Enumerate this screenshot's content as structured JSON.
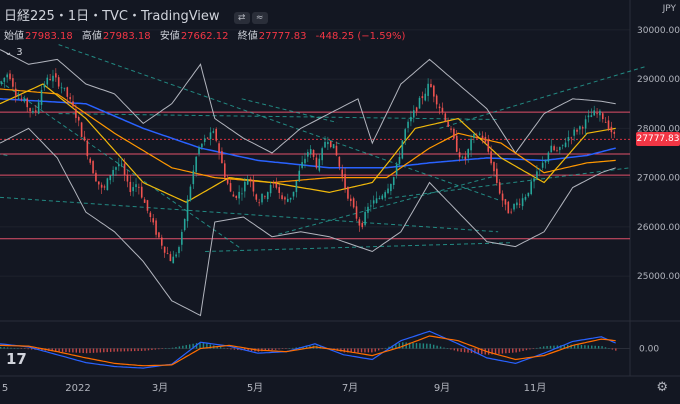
{
  "header": {
    "title": "日経225・1日・TVC・TradingView",
    "toggles": [
      "⇄",
      "≈"
    ],
    "ohlc": [
      {
        "label": "始値",
        "value": "27983.18"
      },
      {
        "label": "高値",
        "value": "27983.18"
      },
      {
        "label": "安値",
        "value": "27662.12"
      },
      {
        "label": "終値",
        "value": "27777.83"
      },
      {
        "label": "",
        "value": "-448.25 (−1.59%)"
      }
    ],
    "indicator_count": "3"
  },
  "currency": "JPY",
  "logo": "17",
  "settings_icon": "gear-icon",
  "chart_data": {
    "type": "candlestick",
    "y_axis": {
      "ylim": [
        24150,
        30200
      ],
      "ticks": [
        "30000.00",
        "29000.00",
        "28000.00",
        "27000.00",
        "26000.00",
        "25000.00"
      ],
      "tick_values": [
        30000,
        29000,
        28000,
        27000,
        26000,
        25000
      ]
    },
    "x_axis": {
      "labels": [
        "5",
        "2022",
        "3月",
        "5月",
        "7月",
        "9月",
        "11月"
      ]
    },
    "last_price": "27777.83",
    "last_value": 27777.83,
    "horizontal_levels": [
      28330,
      27480,
      27050,
      25760
    ],
    "trend_lines": [
      [
        [
          28250,
          28600
        ],
        [
          28380,
          28120
        ]
      ],
      [
        [
          28000,
          28300
        ],
        [
          28600,
          28180
        ]
      ],
      [
        [
          27920,
          28950
        ],
        [
          28250,
          25550
        ]
      ],
      [
        [
          27930,
          27450
        ],
        [
          27600,
          28250
        ]
      ],
      [
        [
          27920,
          26600
        ],
        [
          28600,
          25900
        ]
      ],
      [
        [
          28000,
          29700
        ],
        [
          28600,
          26550
        ]
      ],
      [
        [
          28300,
          25850
        ],
        [
          28600,
          27050
        ]
      ],
      [
        [
          28450,
          26580
        ],
        [
          28780,
          27200
        ]
      ],
      [
        [
          28520,
          28000
        ],
        [
          28800,
          29250
        ]
      ],
      [
        [
          28200,
          25500
        ],
        [
          28620,
          25680
        ]
      ]
    ],
    "price_path": [
      [
        0,
        28900
      ],
      [
        6,
        29150
      ],
      [
        12,
        28650
      ],
      [
        18,
        28500
      ],
      [
        24,
        28250
      ],
      [
        30,
        28900
      ],
      [
        36,
        29050
      ],
      [
        42,
        28900
      ],
      [
        48,
        28600
      ],
      [
        54,
        28200
      ],
      [
        60,
        27600
      ],
      [
        66,
        27050
      ],
      [
        72,
        26700
      ],
      [
        78,
        27150
      ],
      [
        84,
        27300
      ],
      [
        90,
        26750
      ],
      [
        96,
        26900
      ],
      [
        102,
        26400
      ],
      [
        108,
        25950
      ],
      [
        114,
        25600
      ],
      [
        120,
        25300
      ],
      [
        126,
        25650
      ],
      [
        132,
        26700
      ],
      [
        138,
        27550
      ],
      [
        144,
        27800
      ],
      [
        150,
        27900
      ],
      [
        156,
        27150
      ],
      [
        162,
        26600
      ],
      [
        168,
        26700
      ],
      [
        174,
        27050
      ],
      [
        180,
        26500
      ],
      [
        186,
        26700
      ],
      [
        192,
        26900
      ],
      [
        198,
        26500
      ],
      [
        204,
        26650
      ],
      [
        210,
        27200
      ],
      [
        216,
        27600
      ],
      [
        222,
        27200
      ],
      [
        228,
        27850
      ],
      [
        234,
        27550
      ],
      [
        240,
        26900
      ],
      [
        246,
        26400
      ],
      [
        252,
        26000
      ],
      [
        258,
        26450
      ],
      [
        264,
        26550
      ],
      [
        270,
        26800
      ],
      [
        276,
        27050
      ],
      [
        282,
        27900
      ],
      [
        288,
        28250
      ],
      [
        294,
        28600
      ],
      [
        300,
        28900
      ],
      [
        306,
        28500
      ],
      [
        312,
        28150
      ],
      [
        318,
        27650
      ],
      [
        324,
        27300
      ],
      [
        330,
        27800
      ],
      [
        336,
        27900
      ],
      [
        342,
        27450
      ],
      [
        348,
        26800
      ],
      [
        354,
        26300
      ],
      [
        360,
        26450
      ],
      [
        366,
        26600
      ],
      [
        372,
        26900
      ],
      [
        378,
        27200
      ],
      [
        384,
        27600
      ],
      [
        390,
        27500
      ],
      [
        396,
        27800
      ],
      [
        402,
        27950
      ],
      [
        408,
        28100
      ],
      [
        414,
        28300
      ],
      [
        420,
        28280
      ],
      [
        426,
        28000
      ],
      [
        430,
        27778
      ]
    ],
    "ma_orange": [
      [
        0,
        28800
      ],
      [
        40,
        28700
      ],
      [
        80,
        27900
      ],
      [
        120,
        27200
      ],
      [
        150,
        27000
      ],
      [
        190,
        26900
      ],
      [
        230,
        27000
      ],
      [
        270,
        27000
      ],
      [
        300,
        27600
      ],
      [
        320,
        27900
      ],
      [
        350,
        27700
      ],
      [
        380,
        27100
      ],
      [
        410,
        27300
      ],
      [
        430,
        27350
      ]
    ],
    "ma_blue": [
      [
        0,
        28600
      ],
      [
        60,
        28500
      ],
      [
        100,
        28000
      ],
      [
        140,
        27600
      ],
      [
        180,
        27350
      ],
      [
        230,
        27200
      ],
      [
        270,
        27200
      ],
      [
        300,
        27300
      ],
      [
        340,
        27400
      ],
      [
        380,
        27350
      ],
      [
        410,
        27450
      ],
      [
        430,
        27600
      ]
    ],
    "ma_gold": [
      [
        0,
        28500
      ],
      [
        30,
        28900
      ],
      [
        60,
        28200
      ],
      [
        100,
        26900
      ],
      [
        130,
        26500
      ],
      [
        160,
        27000
      ],
      [
        190,
        26900
      ],
      [
        230,
        26700
      ],
      [
        260,
        26900
      ],
      [
        290,
        28000
      ],
      [
        320,
        28200
      ],
      [
        350,
        27400
      ],
      [
        380,
        26900
      ],
      [
        410,
        27900
      ],
      [
        430,
        28000
      ]
    ],
    "bollinger_upper": [
      [
        0,
        29600
      ],
      [
        20,
        29300
      ],
      [
        40,
        29400
      ],
      [
        60,
        28900
      ],
      [
        80,
        28700
      ],
      [
        100,
        28100
      ],
      [
        120,
        28500
      ],
      [
        140,
        29300
      ],
      [
        150,
        28200
      ],
      [
        170,
        27800
      ],
      [
        190,
        27500
      ],
      [
        210,
        28000
      ],
      [
        230,
        28300
      ],
      [
        250,
        28600
      ],
      [
        260,
        27700
      ],
      [
        280,
        28900
      ],
      [
        300,
        29400
      ],
      [
        320,
        28900
      ],
      [
        340,
        28400
      ],
      [
        360,
        27500
      ],
      [
        380,
        28300
      ],
      [
        400,
        28600
      ],
      [
        420,
        28550
      ],
      [
        430,
        28500
      ]
    ],
    "bollinger_lower": [
      [
        0,
        27700
      ],
      [
        20,
        28000
      ],
      [
        40,
        27400
      ],
      [
        60,
        26300
      ],
      [
        80,
        25900
      ],
      [
        100,
        25300
      ],
      [
        120,
        24500
      ],
      [
        140,
        24200
      ],
      [
        150,
        26100
      ],
      [
        170,
        26200
      ],
      [
        190,
        25800
      ],
      [
        210,
        25900
      ],
      [
        230,
        25800
      ],
      [
        250,
        25600
      ],
      [
        260,
        25500
      ],
      [
        280,
        25900
      ],
      [
        300,
        26900
      ],
      [
        320,
        26300
      ],
      [
        340,
        25700
      ],
      [
        360,
        25600
      ],
      [
        380,
        25900
      ],
      [
        400,
        26800
      ],
      [
        420,
        27100
      ],
      [
        430,
        27200
      ]
    ],
    "macd": {
      "zero_label": "0.00",
      "macd_line": [
        [
          0,
          60
        ],
        [
          20,
          20
        ],
        [
          40,
          -80
        ],
        [
          60,
          -180
        ],
        [
          80,
          -230
        ],
        [
          100,
          -250
        ],
        [
          120,
          -200
        ],
        [
          140,
          80
        ],
        [
          160,
          30
        ],
        [
          180,
          -60
        ],
        [
          200,
          -40
        ],
        [
          220,
          60
        ],
        [
          240,
          -80
        ],
        [
          260,
          -140
        ],
        [
          280,
          100
        ],
        [
          300,
          220
        ],
        [
          320,
          60
        ],
        [
          340,
          -120
        ],
        [
          360,
          -190
        ],
        [
          380,
          -60
        ],
        [
          400,
          90
        ],
        [
          420,
          150
        ],
        [
          430,
          70
        ]
      ],
      "signal_line": [
        [
          0,
          40
        ],
        [
          20,
          30
        ],
        [
          40,
          -40
        ],
        [
          60,
          -120
        ],
        [
          80,
          -190
        ],
        [
          100,
          -220
        ],
        [
          120,
          -210
        ],
        [
          140,
          0
        ],
        [
          160,
          40
        ],
        [
          180,
          -20
        ],
        [
          200,
          -40
        ],
        [
          220,
          20
        ],
        [
          240,
          -30
        ],
        [
          260,
          -90
        ],
        [
          280,
          20
        ],
        [
          300,
          160
        ],
        [
          320,
          100
        ],
        [
          340,
          -40
        ],
        [
          360,
          -140
        ],
        [
          380,
          -90
        ],
        [
          400,
          40
        ],
        [
          420,
          120
        ],
        [
          430,
          100
        ]
      ]
    }
  }
}
